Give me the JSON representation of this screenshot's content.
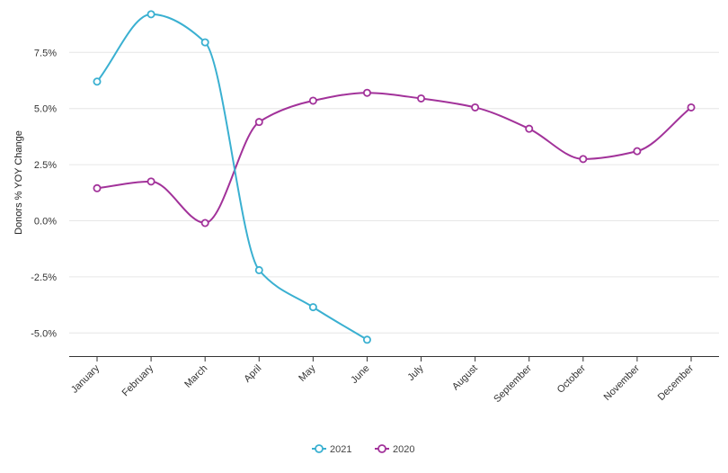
{
  "chart_data": {
    "type": "line",
    "title": "",
    "xlabel": "",
    "ylabel": "Donors % YOY Change",
    "categories": [
      "January",
      "February",
      "March",
      "April",
      "May",
      "June",
      "July",
      "August",
      "September",
      "October",
      "November",
      "December"
    ],
    "y_ticks": [
      "-5.0%",
      "-2.5%",
      "0.0%",
      "2.5%",
      "5.0%",
      "7.5%"
    ],
    "y_tick_values": [
      -5,
      -2.5,
      0,
      2.5,
      5,
      7.5
    ],
    "ylim": [
      -6,
      9.5
    ],
    "grid": true,
    "legend_position": "bottom-center",
    "series": [
      {
        "name": "2021",
        "color": "#3ab0d1",
        "values": [
          6.2,
          9.2,
          7.95,
          -2.2,
          -3.85,
          -5.3,
          null,
          null,
          null,
          null,
          null,
          null
        ]
      },
      {
        "name": "2020",
        "color": "#a2329a",
        "values": [
          1.45,
          1.75,
          -0.1,
          4.4,
          5.35,
          5.7,
          5.45,
          5.05,
          4.1,
          2.75,
          3.1,
          5.05
        ]
      }
    ]
  }
}
